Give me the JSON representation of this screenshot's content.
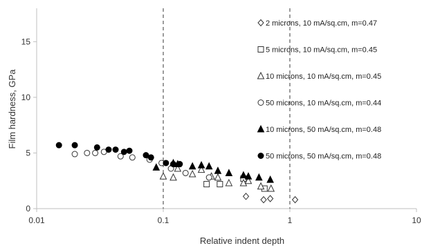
{
  "chart_data": {
    "type": "scatter",
    "xscale": "log",
    "xlabel": "Relative indent depth",
    "ylabel": "Film hardness, GPa",
    "xlim": [
      0.01,
      10
    ],
    "ylim": [
      0,
      18
    ],
    "xticks": [
      0.01,
      0.1,
      1,
      10
    ],
    "xtick_labels": [
      "0.01",
      "0.1",
      "1",
      "10"
    ],
    "yticks": [
      0,
      5,
      10,
      15
    ],
    "ytick_labels": [
      "0",
      "5",
      "10",
      "15"
    ],
    "grid": false,
    "reference_lines_x": [
      0.1,
      1
    ],
    "legend_position": "top-right",
    "series": [
      {
        "name": "2 microns, 10 mA/sq.cm, m=0.47",
        "marker": "diamond-open",
        "x": [
          0.45,
          0.62,
          0.7,
          1.1
        ],
        "y": [
          1.1,
          0.8,
          0.9,
          0.8
        ]
      },
      {
        "name": "5 microns, 10 mA/sq.cm, m=0.45",
        "marker": "square-open",
        "x": [
          0.22,
          0.28,
          0.43,
          0.63
        ],
        "y": [
          2.2,
          2.2,
          2.7,
          1.8
        ]
      },
      {
        "name": "10 microns, 10 mA/sq.cm, m=0.45",
        "marker": "triangle-open",
        "x": [
          0.1,
          0.12,
          0.13,
          0.17,
          0.2,
          0.24,
          0.27,
          0.33,
          0.43,
          0.47,
          0.59,
          0.71
        ],
        "y": [
          2.9,
          2.8,
          3.6,
          3.1,
          3.5,
          2.9,
          2.8,
          2.3,
          2.3,
          2.5,
          2.0,
          1.8
        ]
      },
      {
        "name": "50 microns, 10 mA/sq.cm, m=0.44",
        "marker": "circle-open",
        "x": [
          0.02,
          0.025,
          0.029,
          0.034,
          0.046,
          0.057,
          0.078,
          0.097,
          0.115,
          0.15,
          0.23
        ],
        "y": [
          4.9,
          5.0,
          5.0,
          5.1,
          4.7,
          4.6,
          4.4,
          4.1,
          3.6,
          3.2,
          2.8
        ]
      },
      {
        "name": "10 microns, 50 mA/sq.cm, m=0.48",
        "marker": "triangle-filled",
        "x": [
          0.088,
          0.12,
          0.13,
          0.17,
          0.2,
          0.23,
          0.27,
          0.33,
          0.43,
          0.47,
          0.57,
          0.7
        ],
        "y": [
          3.7,
          4.1,
          4.0,
          3.8,
          3.9,
          3.8,
          3.4,
          3.2,
          3.0,
          2.9,
          2.8,
          2.6
        ]
      },
      {
        "name": "50 microns, 50 mA/sq.cm, m=0.48",
        "marker": "circle-filled",
        "x": [
          0.015,
          0.02,
          0.03,
          0.037,
          0.042,
          0.049,
          0.054,
          0.073,
          0.08,
          0.105,
          0.12,
          0.135
        ],
        "y": [
          5.7,
          5.7,
          5.5,
          5.3,
          5.3,
          5.1,
          5.2,
          4.8,
          4.6,
          4.1,
          4.0,
          4.0
        ]
      }
    ]
  }
}
